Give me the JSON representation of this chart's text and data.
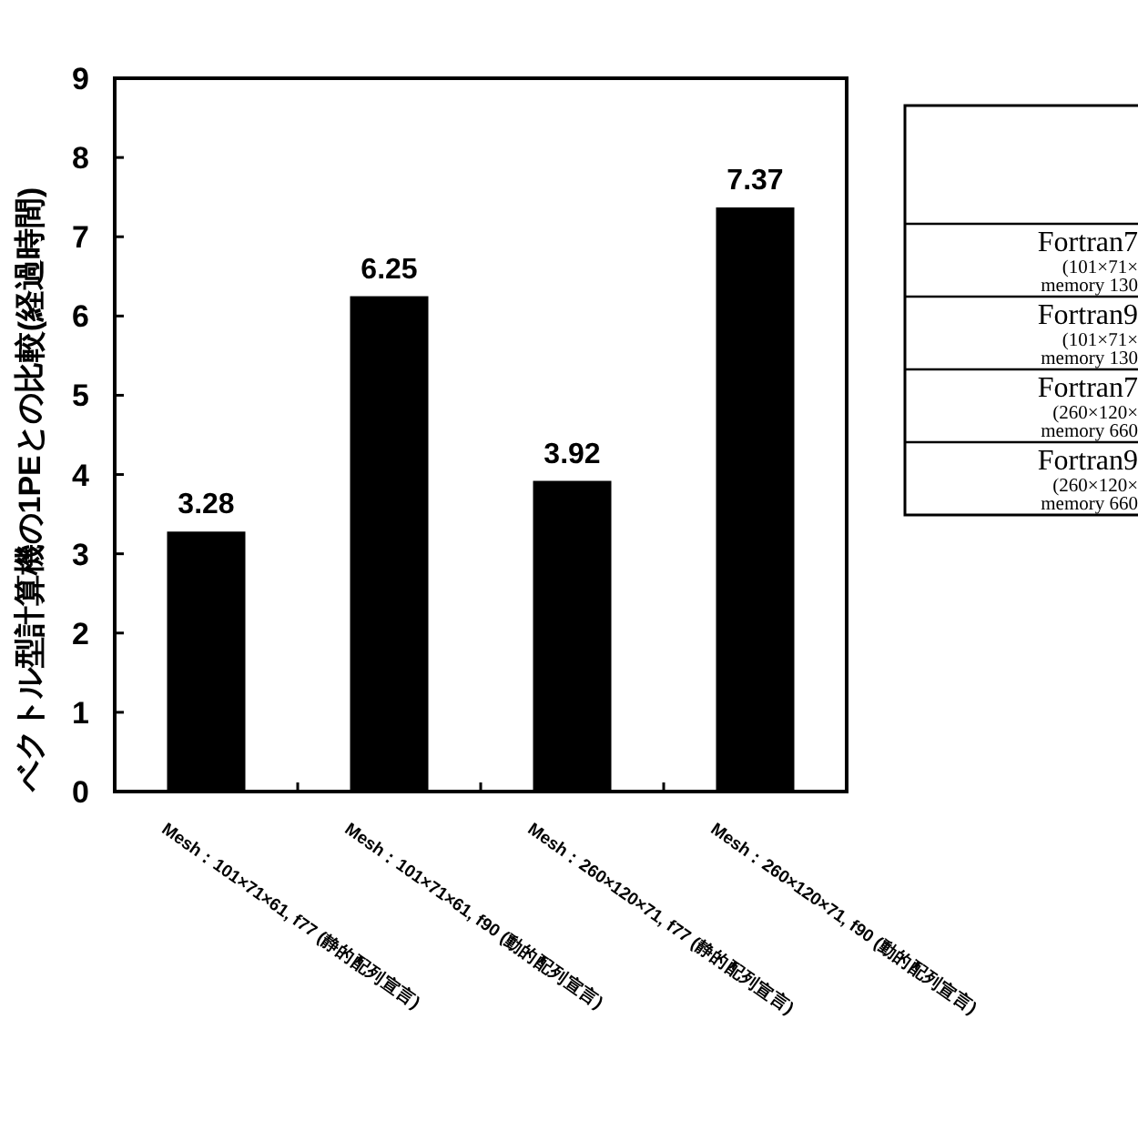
{
  "chart_data": [
    {
      "type": "bar",
      "ylabel": "ベクトル型計算機の1PEとの比較(経過時間)",
      "categories": [
        "Mesh：101×71×61, f77 (静的配列宣言)",
        "Mesh：101×71×61, f90 (動的配列宣言)",
        "Mesh：260×120×71, f77 (静的配列宣言)",
        "Mesh：260×120×71, f90 (動的配列宣言)"
      ],
      "values": [
        3.28,
        6.25,
        3.92,
        7.37
      ],
      "color": "#000000",
      "ylim": [
        0,
        9
      ],
      "yticks": [
        0,
        1,
        2,
        3,
        4,
        5,
        6,
        7,
        8,
        9
      ],
      "data_labels": true
    },
    {
      "type": "other",
      "annotations": [
        "Fortran7",
        "(101×71×",
        "memory 130",
        "Fortran9",
        "(101×71×",
        "memory 130",
        "Fortran7",
        "(260×120×",
        "memory 660",
        "Fortran9",
        "(260×120×",
        "memory 660"
      ]
    }
  ]
}
